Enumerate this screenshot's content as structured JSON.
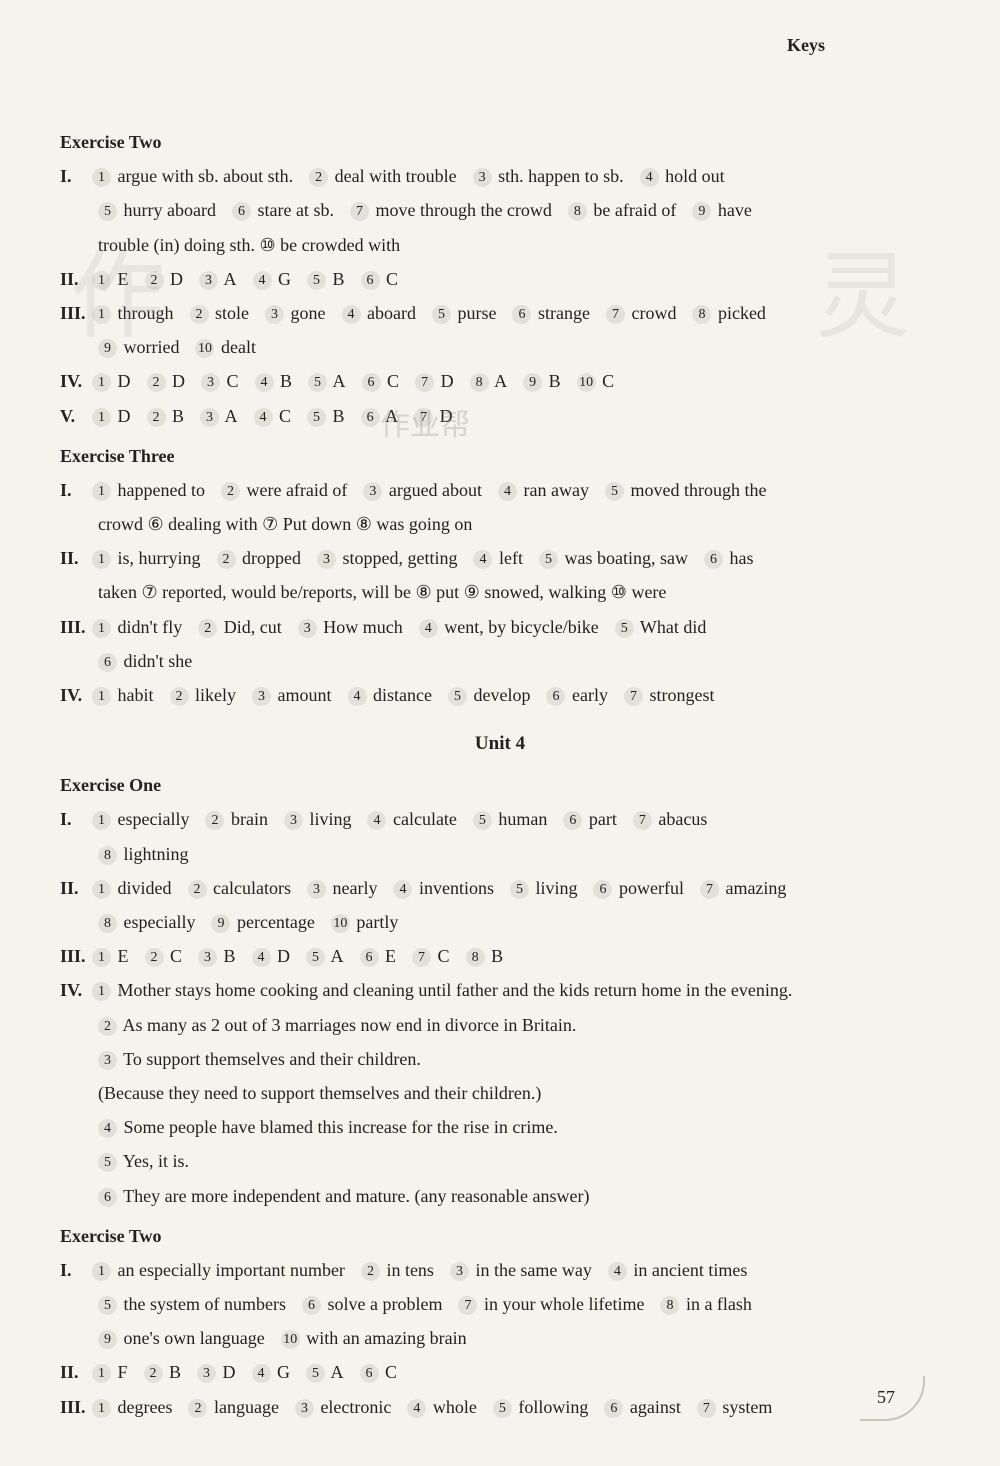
{
  "header": {
    "keys": "Keys"
  },
  "page_number": "57",
  "colors": {
    "background": "#f5f3ed",
    "text": "#222222",
    "circled_bg": "#e2e0d9",
    "deco": "#c8c4b8"
  },
  "typography": {
    "body_font": "Times New Roman",
    "body_size_pt": 14,
    "line_height": 1.9,
    "bold_labels": true
  },
  "watermarks": [
    "作",
    "灵",
    "作业帮"
  ],
  "sections": [
    {
      "type": "exercise_title",
      "text": "Exercise Two"
    },
    {
      "type": "line",
      "roman": "I.",
      "items": [
        {
          "n": "1",
          "t": "argue with sb. about sth."
        },
        {
          "n": "2",
          "t": "deal with trouble"
        },
        {
          "n": "3",
          "t": "sth. happen to sb."
        },
        {
          "n": "4",
          "t": "hold out"
        }
      ]
    },
    {
      "type": "line",
      "indent": true,
      "items": [
        {
          "n": "5",
          "t": "hurry aboard"
        },
        {
          "n": "6",
          "t": "stare at sb."
        },
        {
          "n": "7",
          "t": "move through the crowd"
        },
        {
          "n": "8",
          "t": "be afraid of"
        },
        {
          "n": "9",
          "t": "have"
        }
      ]
    },
    {
      "type": "cont",
      "indent": true,
      "text": "trouble (in) doing sth.    ⑩ be crowded with"
    },
    {
      "type": "line",
      "roman": "II.",
      "items": [
        {
          "n": "1",
          "t": "E"
        },
        {
          "n": "2",
          "t": "D"
        },
        {
          "n": "3",
          "t": "A"
        },
        {
          "n": "4",
          "t": "G"
        },
        {
          "n": "5",
          "t": "B"
        },
        {
          "n": "6",
          "t": "C"
        }
      ]
    },
    {
      "type": "line",
      "roman": "III.",
      "items": [
        {
          "n": "1",
          "t": "through"
        },
        {
          "n": "2",
          "t": "stole"
        },
        {
          "n": "3",
          "t": "gone"
        },
        {
          "n": "4",
          "t": "aboard"
        },
        {
          "n": "5",
          "t": "purse"
        },
        {
          "n": "6",
          "t": "strange"
        },
        {
          "n": "7",
          "t": "crowd"
        },
        {
          "n": "8",
          "t": "picked"
        }
      ]
    },
    {
      "type": "line",
      "indent": true,
      "items": [
        {
          "n": "9",
          "t": "worried"
        },
        {
          "n": "10",
          "t": "dealt"
        }
      ]
    },
    {
      "type": "line",
      "roman": "IV.",
      "items": [
        {
          "n": "1",
          "t": "D"
        },
        {
          "n": "2",
          "t": "D"
        },
        {
          "n": "3",
          "t": "C"
        },
        {
          "n": "4",
          "t": "B"
        },
        {
          "n": "5",
          "t": "A"
        },
        {
          "n": "6",
          "t": "C"
        },
        {
          "n": "7",
          "t": "D"
        },
        {
          "n": "8",
          "t": "A"
        },
        {
          "n": "9",
          "t": "B"
        },
        {
          "n": "10",
          "t": "C"
        }
      ]
    },
    {
      "type": "line",
      "roman": "V.",
      "items": [
        {
          "n": "1",
          "t": "D"
        },
        {
          "n": "2",
          "t": "B"
        },
        {
          "n": "3",
          "t": "A"
        },
        {
          "n": "4",
          "t": "C"
        },
        {
          "n": "5",
          "t": "B"
        },
        {
          "n": "6",
          "t": "A"
        },
        {
          "n": "7",
          "t": "D"
        }
      ]
    },
    {
      "type": "exercise_title",
      "text": "Exercise Three"
    },
    {
      "type": "line",
      "roman": "I.",
      "items": [
        {
          "n": "1",
          "t": "happened to"
        },
        {
          "n": "2",
          "t": "were afraid of"
        },
        {
          "n": "3",
          "t": "argued about"
        },
        {
          "n": "4",
          "t": "ran away"
        },
        {
          "n": "5",
          "t": "moved through the"
        }
      ]
    },
    {
      "type": "cont",
      "indent": true,
      "text": "crowd    ⑥ dealing with    ⑦ Put down    ⑧ was going on"
    },
    {
      "type": "line",
      "roman": "II.",
      "items": [
        {
          "n": "1",
          "t": "is, hurrying"
        },
        {
          "n": "2",
          "t": "dropped"
        },
        {
          "n": "3",
          "t": "stopped, getting"
        },
        {
          "n": "4",
          "t": "left"
        },
        {
          "n": "5",
          "t": "was boating, saw"
        },
        {
          "n": "6",
          "t": "has"
        }
      ]
    },
    {
      "type": "cont",
      "indent": true,
      "text": "taken    ⑦ reported, would be/reports, will be    ⑧ put    ⑨ snowed, walking    ⑩ were"
    },
    {
      "type": "line",
      "roman": "III.",
      "items": [
        {
          "n": "1",
          "t": "didn't fly"
        },
        {
          "n": "2",
          "t": "Did, cut"
        },
        {
          "n": "3",
          "t": "How much"
        },
        {
          "n": "4",
          "t": "went, by bicycle/bike"
        },
        {
          "n": "5",
          "t": "What did"
        }
      ]
    },
    {
      "type": "line",
      "indent": true,
      "items": [
        {
          "n": "6",
          "t": "didn't she"
        }
      ]
    },
    {
      "type": "line",
      "roman": "IV.",
      "items": [
        {
          "n": "1",
          "t": "habit"
        },
        {
          "n": "2",
          "t": "likely"
        },
        {
          "n": "3",
          "t": "amount"
        },
        {
          "n": "4",
          "t": "distance"
        },
        {
          "n": "5",
          "t": "develop"
        },
        {
          "n": "6",
          "t": "early"
        },
        {
          "n": "7",
          "t": "strongest"
        }
      ]
    },
    {
      "type": "unit_title",
      "text": "Unit 4"
    },
    {
      "type": "exercise_title",
      "text": "Exercise One"
    },
    {
      "type": "line",
      "roman": "I.",
      "items": [
        {
          "n": "1",
          "t": "especially"
        },
        {
          "n": "2",
          "t": "brain"
        },
        {
          "n": "3",
          "t": "living"
        },
        {
          "n": "4",
          "t": "calculate"
        },
        {
          "n": "5",
          "t": "human"
        },
        {
          "n": "6",
          "t": "part"
        },
        {
          "n": "7",
          "t": "abacus"
        }
      ]
    },
    {
      "type": "line",
      "indent": true,
      "items": [
        {
          "n": "8",
          "t": "lightning"
        }
      ]
    },
    {
      "type": "line",
      "roman": "II.",
      "items": [
        {
          "n": "1",
          "t": "divided"
        },
        {
          "n": "2",
          "t": "calculators"
        },
        {
          "n": "3",
          "t": "nearly"
        },
        {
          "n": "4",
          "t": "inventions"
        },
        {
          "n": "5",
          "t": "living"
        },
        {
          "n": "6",
          "t": "powerful"
        },
        {
          "n": "7",
          "t": "amazing"
        }
      ]
    },
    {
      "type": "line",
      "indent": true,
      "items": [
        {
          "n": "8",
          "t": "especially"
        },
        {
          "n": "9",
          "t": "percentage"
        },
        {
          "n": "10",
          "t": "partly"
        }
      ]
    },
    {
      "type": "line",
      "roman": "III.",
      "items": [
        {
          "n": "1",
          "t": "E"
        },
        {
          "n": "2",
          "t": "C"
        },
        {
          "n": "3",
          "t": "B"
        },
        {
          "n": "4",
          "t": "D"
        },
        {
          "n": "5",
          "t": "A"
        },
        {
          "n": "6",
          "t": "E"
        },
        {
          "n": "7",
          "t": "C"
        },
        {
          "n": "8",
          "t": "B"
        }
      ]
    },
    {
      "type": "line",
      "roman": "IV.",
      "items": [
        {
          "n": "1",
          "t": "Mother stays home cooking and cleaning until father and the kids return home in the evening."
        }
      ]
    },
    {
      "type": "line",
      "indent": true,
      "items": [
        {
          "n": "2",
          "t": "As many as 2 out of 3 marriages now end in divorce in Britain."
        }
      ]
    },
    {
      "type": "line",
      "indent": true,
      "items": [
        {
          "n": "3",
          "t": "To support themselves and their children."
        }
      ]
    },
    {
      "type": "cont",
      "indent": true,
      "text": "   (Because they need to support themselves and their children.)"
    },
    {
      "type": "line",
      "indent": true,
      "items": [
        {
          "n": "4",
          "t": "Some people have blamed this increase for the rise in crime."
        }
      ]
    },
    {
      "type": "line",
      "indent": true,
      "items": [
        {
          "n": "5",
          "t": "Yes, it is."
        }
      ]
    },
    {
      "type": "line",
      "indent": true,
      "items": [
        {
          "n": "6",
          "t": "They are more independent and mature. (any reasonable answer)"
        }
      ]
    },
    {
      "type": "exercise_title",
      "text": "Exercise Two"
    },
    {
      "type": "line",
      "roman": "I.",
      "items": [
        {
          "n": "1",
          "t": "an especially important number"
        },
        {
          "n": "2",
          "t": "in tens"
        },
        {
          "n": "3",
          "t": "in the same way"
        },
        {
          "n": "4",
          "t": "in ancient times"
        }
      ]
    },
    {
      "type": "line",
      "indent": true,
      "items": [
        {
          "n": "5",
          "t": "the system of numbers"
        },
        {
          "n": "6",
          "t": "solve a problem"
        },
        {
          "n": "7",
          "t": "in your whole lifetime"
        },
        {
          "n": "8",
          "t": "in a flash"
        }
      ]
    },
    {
      "type": "line",
      "indent": true,
      "items": [
        {
          "n": "9",
          "t": "one's own language"
        },
        {
          "n": "10",
          "t": "with an amazing brain"
        }
      ]
    },
    {
      "type": "line",
      "roman": "II.",
      "items": [
        {
          "n": "1",
          "t": "F"
        },
        {
          "n": "2",
          "t": "B"
        },
        {
          "n": "3",
          "t": "D"
        },
        {
          "n": "4",
          "t": "G"
        },
        {
          "n": "5",
          "t": "A"
        },
        {
          "n": "6",
          "t": "C"
        }
      ]
    },
    {
      "type": "line",
      "roman": "III.",
      "items": [
        {
          "n": "1",
          "t": "degrees"
        },
        {
          "n": "2",
          "t": "language"
        },
        {
          "n": "3",
          "t": "electronic"
        },
        {
          "n": "4",
          "t": "whole"
        },
        {
          "n": "5",
          "t": "following"
        },
        {
          "n": "6",
          "t": "against"
        },
        {
          "n": "7",
          "t": "system"
        }
      ]
    }
  ]
}
